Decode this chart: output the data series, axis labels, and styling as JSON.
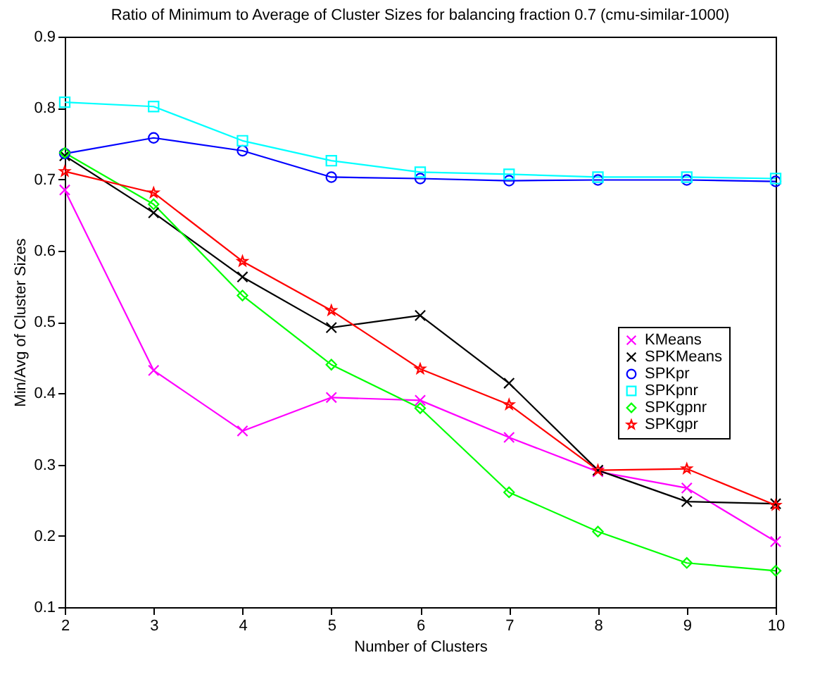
{
  "chart_data": {
    "type": "line",
    "title": "Ratio of Minimum to Average of Cluster Sizes for balancing fraction 0.7 (cmu-similar-1000)",
    "xlabel": "Number of Clusters",
    "ylabel": "Min/Avg of Cluster Sizes",
    "x": [
      2,
      3,
      4,
      5,
      6,
      7,
      8,
      9,
      10
    ],
    "series": [
      {
        "name": "KMeans",
        "color": "#ff00ff",
        "marker": "cross",
        "values": [
          0.685,
          0.432,
          0.347,
          0.394,
          0.39,
          0.338,
          0.29,
          0.267,
          0.192
        ]
      },
      {
        "name": "SPKMeans",
        "color": "#000000",
        "marker": "cross",
        "values": [
          0.733,
          0.653,
          0.563,
          0.492,
          0.509,
          0.414,
          0.292,
          0.248,
          0.245
        ]
      },
      {
        "name": "SPKpr",
        "color": "#0000ff",
        "marker": "circle",
        "values": [
          0.736,
          0.758,
          0.74,
          0.703,
          0.701,
          0.698,
          0.699,
          0.699,
          0.697
        ]
      },
      {
        "name": "SPKpnr",
        "color": "#00ffff",
        "marker": "square",
        "values": [
          0.808,
          0.802,
          0.754,
          0.726,
          0.71,
          0.707,
          0.703,
          0.703,
          0.701
        ]
      },
      {
        "name": "SPKgpnr",
        "color": "#00ff00",
        "marker": "diamond",
        "values": [
          0.737,
          0.665,
          0.537,
          0.44,
          0.379,
          0.261,
          0.206,
          0.162,
          0.151
        ]
      },
      {
        "name": "SPKgpr",
        "color": "#ff0000",
        "marker": "star",
        "values": [
          0.711,
          0.681,
          0.585,
          0.516,
          0.434,
          0.384,
          0.292,
          0.294,
          0.243
        ]
      }
    ],
    "xlim": [
      2,
      10
    ],
    "xticks": [
      2,
      3,
      4,
      5,
      6,
      7,
      8,
      9,
      10
    ],
    "ylim": [
      0.1,
      0.9
    ],
    "yticks": [
      0.1,
      0.2,
      0.3,
      0.4,
      0.5,
      0.6,
      0.7,
      0.8,
      0.9
    ],
    "grid": false,
    "legend": "right",
    "line_style": "solid"
  }
}
